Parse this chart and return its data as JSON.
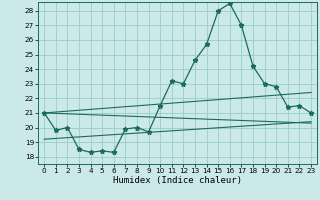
{
  "xlabel": "Humidex (Indice chaleur)",
  "xlim": [
    -0.5,
    23.5
  ],
  "ylim": [
    17.5,
    28.6
  ],
  "xticks": [
    0,
    1,
    2,
    3,
    4,
    5,
    6,
    7,
    8,
    9,
    10,
    11,
    12,
    13,
    14,
    15,
    16,
    17,
    18,
    19,
    20,
    21,
    22,
    23
  ],
  "yticks": [
    18,
    19,
    20,
    21,
    22,
    23,
    24,
    25,
    26,
    27,
    28
  ],
  "bg_color": "#cce9e9",
  "line_color": "#1a6b5a",
  "grid_color": "#99cccc",
  "main_x": [
    0,
    1,
    2,
    3,
    4,
    5,
    6,
    7,
    8,
    9,
    10,
    11,
    12,
    13,
    14,
    15,
    16,
    17,
    18,
    19,
    20,
    21,
    22,
    23
  ],
  "main_y": [
    21.0,
    19.8,
    20.0,
    18.5,
    18.3,
    18.4,
    18.3,
    19.9,
    20.0,
    19.7,
    21.5,
    23.2,
    23.0,
    24.6,
    25.7,
    28.0,
    28.5,
    27.0,
    24.2,
    23.0,
    22.8,
    21.4,
    21.5,
    21.0
  ],
  "trend1_x": [
    0,
    23
  ],
  "trend1_y": [
    21.0,
    22.4
  ],
  "trend2_x": [
    0,
    23
  ],
  "trend2_y": [
    19.2,
    20.4
  ],
  "trend3_x": [
    0,
    23
  ],
  "trend3_y": [
    21.0,
    20.3
  ],
  "xlabel_fontsize": 6.5,
  "tick_fontsize": 5.2
}
